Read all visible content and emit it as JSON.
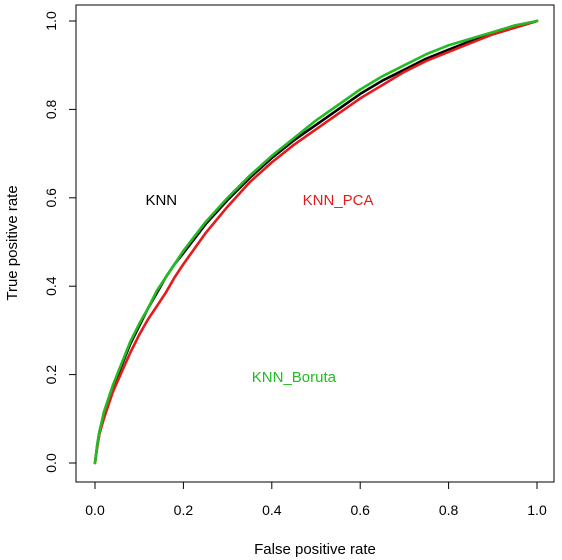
{
  "chart_data": {
    "type": "line",
    "title": "",
    "xlabel": "False positive rate",
    "ylabel": "True positive rate",
    "xlim": [
      0,
      1
    ],
    "ylim": [
      0,
      1
    ],
    "x_ticks": [
      "0.0",
      "0.2",
      "0.4",
      "0.6",
      "0.8",
      "1.0"
    ],
    "y_ticks": [
      "0.0",
      "0.2",
      "0.4",
      "0.6",
      "0.8",
      "1.0"
    ],
    "grid": false,
    "legend": "none (text labels inside plot)",
    "series": [
      {
        "name": "KNN",
        "color": "#000000",
        "label_pos": [
          0.15,
          0.595
        ],
        "x": [
          0,
          0.005,
          0.01,
          0.02,
          0.04,
          0.06,
          0.08,
          0.1,
          0.12,
          0.14,
          0.16,
          0.18,
          0.2,
          0.25,
          0.3,
          0.35,
          0.4,
          0.45,
          0.5,
          0.55,
          0.6,
          0.65,
          0.7,
          0.75,
          0.8,
          0.85,
          0.9,
          0.95,
          1.0
        ],
        "y": [
          0,
          0.04,
          0.07,
          0.11,
          0.17,
          0.22,
          0.27,
          0.31,
          0.35,
          0.385,
          0.42,
          0.45,
          0.475,
          0.54,
          0.595,
          0.645,
          0.69,
          0.73,
          0.765,
          0.8,
          0.835,
          0.865,
          0.89,
          0.915,
          0.935,
          0.955,
          0.97,
          0.985,
          1.0
        ]
      },
      {
        "name": "KNN_PCA",
        "color": "#e41a1c",
        "label_pos": [
          0.55,
          0.595
        ],
        "x": [
          0,
          0.005,
          0.01,
          0.02,
          0.04,
          0.06,
          0.08,
          0.1,
          0.12,
          0.14,
          0.16,
          0.18,
          0.2,
          0.25,
          0.3,
          0.35,
          0.4,
          0.45,
          0.5,
          0.55,
          0.6,
          0.65,
          0.7,
          0.75,
          0.8,
          0.85,
          0.9,
          0.95,
          1.0
        ],
        "y": [
          0,
          0.035,
          0.065,
          0.1,
          0.16,
          0.205,
          0.25,
          0.29,
          0.325,
          0.355,
          0.385,
          0.42,
          0.45,
          0.52,
          0.58,
          0.635,
          0.68,
          0.72,
          0.755,
          0.79,
          0.825,
          0.855,
          0.885,
          0.91,
          0.93,
          0.95,
          0.97,
          0.985,
          1.0
        ]
      },
      {
        "name": "KNN_Boruta",
        "color": "#22bb22",
        "label_pos": [
          0.45,
          0.195
        ],
        "x": [
          0,
          0.005,
          0.01,
          0.02,
          0.04,
          0.06,
          0.08,
          0.1,
          0.12,
          0.14,
          0.16,
          0.18,
          0.2,
          0.25,
          0.3,
          0.35,
          0.4,
          0.45,
          0.5,
          0.55,
          0.6,
          0.65,
          0.7,
          0.75,
          0.8,
          0.85,
          0.9,
          0.95,
          1.0
        ],
        "y": [
          0,
          0.04,
          0.07,
          0.115,
          0.175,
          0.225,
          0.275,
          0.315,
          0.35,
          0.39,
          0.42,
          0.45,
          0.48,
          0.545,
          0.6,
          0.65,
          0.695,
          0.735,
          0.775,
          0.81,
          0.845,
          0.875,
          0.9,
          0.925,
          0.945,
          0.96,
          0.975,
          0.99,
          1.0
        ]
      }
    ]
  }
}
